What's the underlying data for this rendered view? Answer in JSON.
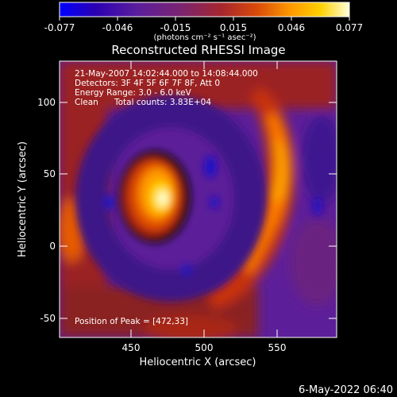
{
  "colorbar": {
    "ticks": [
      "-0.077",
      "-0.046",
      "-0.015",
      "0.015",
      "0.046",
      "0.077"
    ],
    "unit_label": "(photons cm⁻² s⁻¹ asec⁻²)",
    "colors": [
      "#0000ff",
      "#2a00b4",
      "#5b1e9c",
      "#7b2470",
      "#a7262e",
      "#d84a09",
      "#ff9a00",
      "#ffd000",
      "#ffffd8"
    ]
  },
  "plot": {
    "title": "Reconstructed RHESSI Image",
    "info": {
      "time_range": "21-May-2007 14:02:44.000 to 14:08:44.000",
      "detectors": "Detectors: 3F 4F 5F 6F 7F 8F, Att 0",
      "energy": "Energy Range: 3.0 - 6.0 keV",
      "method": "Clean",
      "counts": "Total counts: 3.83E+04"
    },
    "peak_label": "Position of Peak = [472,33]",
    "x_axis": {
      "label": "Heliocentric X (arcsec)",
      "ticks": [
        "450",
        "500",
        "550"
      ],
      "range": [
        402,
        593
      ]
    },
    "y_axis": {
      "label": "Heliocentric Y (arcsec)",
      "ticks": [
        "-50",
        "0",
        "50",
        "100"
      ],
      "range": [
        -63,
        132
      ]
    }
  },
  "footer": {
    "timestamp": "6-May-2022 06:40"
  }
}
